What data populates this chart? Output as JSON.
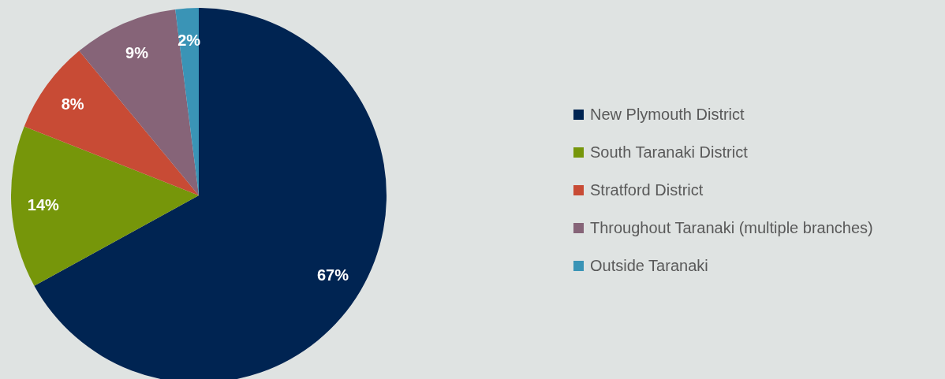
{
  "chart_data": {
    "type": "pie",
    "categories": [
      "New Plymouth District",
      "South Taranaki District",
      "Stratford District",
      "Throughout Taranaki (multiple branches)",
      "Outside Taranaki"
    ],
    "values": [
      67,
      14,
      8,
      9,
      2
    ],
    "colors": [
      "#002452",
      "#76960a",
      "#c84b35",
      "#866478",
      "#3a94b6"
    ],
    "value_labels": [
      "67%",
      "14%",
      "8%",
      "9%",
      "2%"
    ],
    "legend": "right"
  }
}
